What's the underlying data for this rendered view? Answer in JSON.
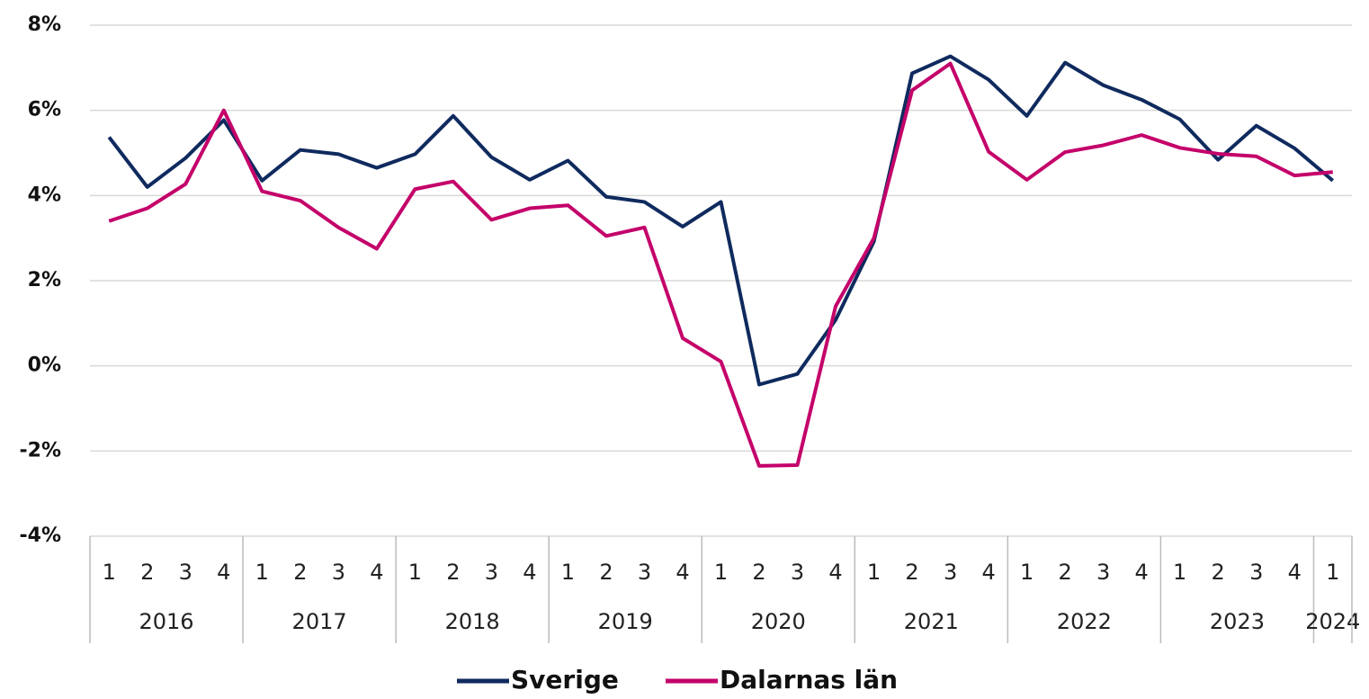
{
  "chart_data": {
    "type": "line",
    "year_groups": [
      {
        "label": "2016",
        "quarters": [
          "1",
          "2",
          "3",
          "4"
        ]
      },
      {
        "label": "2017",
        "quarters": [
          "1",
          "2",
          "3",
          "4"
        ]
      },
      {
        "label": "2018",
        "quarters": [
          "1",
          "2",
          "3",
          "4"
        ]
      },
      {
        "label": "2019",
        "quarters": [
          "1",
          "2",
          "3",
          "4"
        ]
      },
      {
        "label": "2020",
        "quarters": [
          "1",
          "2",
          "3",
          "4"
        ]
      },
      {
        "label": "2021",
        "quarters": [
          "1",
          "2",
          "3",
          "4"
        ]
      },
      {
        "label": "2022",
        "quarters": [
          "1",
          "2",
          "3",
          "4"
        ]
      },
      {
        "label": "2023",
        "quarters": [
          "1",
          "2",
          "3",
          "4"
        ]
      },
      {
        "label": "2024",
        "quarters": [
          "1"
        ]
      }
    ],
    "series": [
      {
        "name": "Sverige",
        "color": "#0f2a5e",
        "values": [
          5.37,
          4.2,
          4.88,
          5.77,
          4.35,
          5.07,
          4.97,
          4.65,
          4.97,
          5.87,
          4.9,
          4.37,
          4.82,
          3.97,
          3.85,
          3.27,
          3.85,
          -0.44,
          -0.19,
          1.08,
          2.92,
          6.87,
          7.27,
          6.72,
          5.87,
          7.12,
          6.59,
          6.25,
          5.79,
          4.84,
          5.64,
          5.11,
          4.35
        ]
      },
      {
        "name": "Dalarnas län",
        "color": "#c4006a",
        "values": [
          3.4,
          3.7,
          4.27,
          6.0,
          4.1,
          3.88,
          3.25,
          2.75,
          4.15,
          4.33,
          3.43,
          3.7,
          3.77,
          3.05,
          3.25,
          0.65,
          0.1,
          -2.35,
          -2.33,
          1.4,
          3.0,
          6.47,
          7.1,
          5.03,
          4.37,
          5.02,
          5.18,
          5.42,
          5.12,
          4.98,
          4.92,
          4.47,
          4.55
        ]
      }
    ],
    "ylim": [
      -4,
      8
    ],
    "yticks": [
      {
        "value": -4,
        "label": "-4%"
      },
      {
        "value": -2,
        "label": "-2%"
      },
      {
        "value": 0,
        "label": "0%"
      },
      {
        "value": 2,
        "label": "2%"
      },
      {
        "value": 4,
        "label": "4%"
      },
      {
        "value": 6,
        "label": "6%"
      },
      {
        "value": 8,
        "label": "8%"
      }
    ],
    "grid": true,
    "legend": "bottom"
  }
}
